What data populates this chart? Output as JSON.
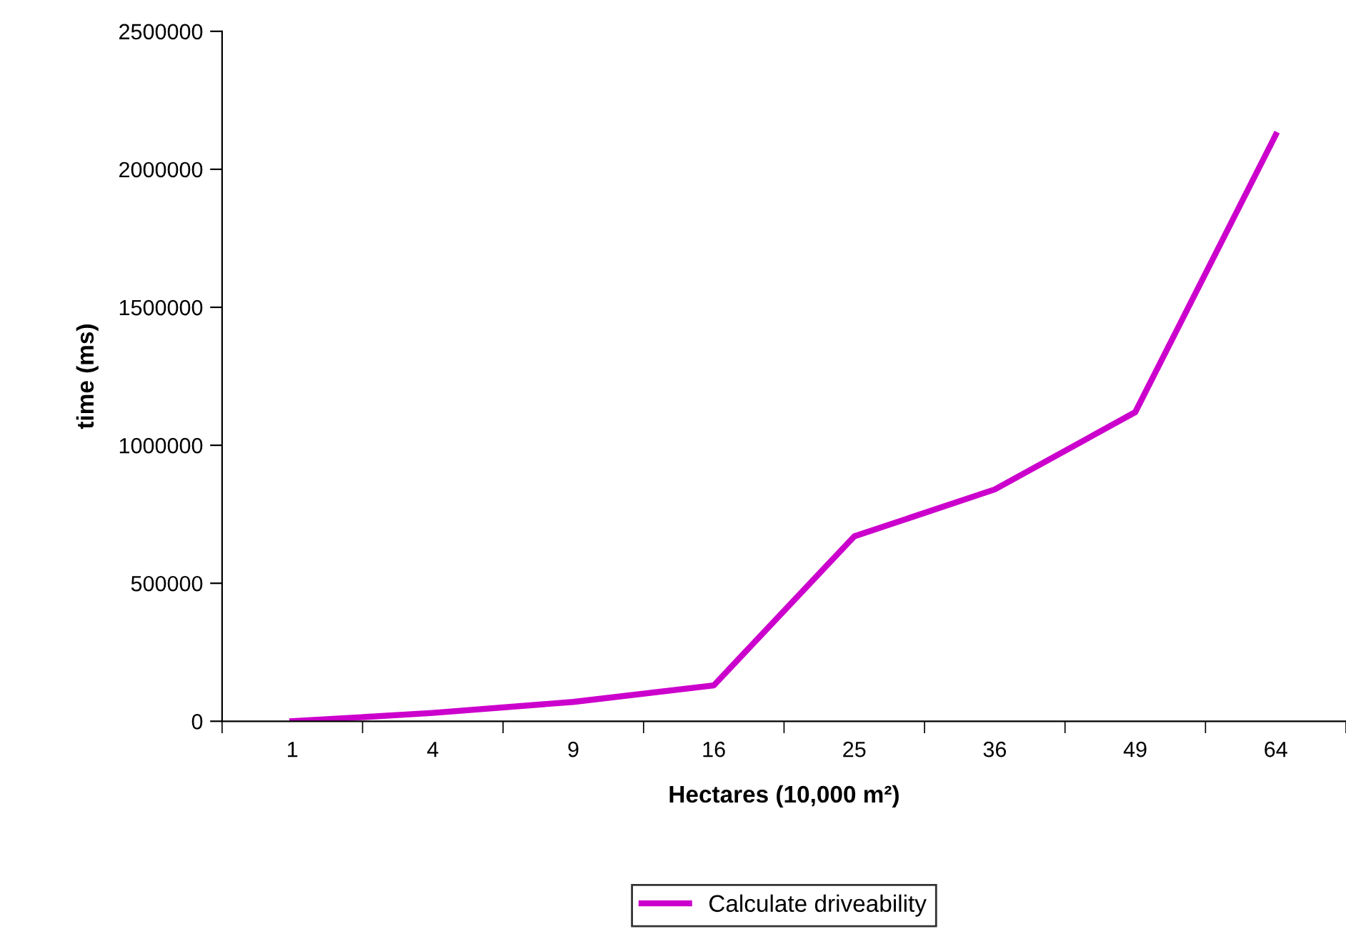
{
  "chart_data": {
    "type": "line",
    "xlabel": "Hectares (10,000 m²)",
    "ylabel": "time (ms)",
    "categories": [
      "1",
      "4",
      "9",
      "16",
      "25",
      "36",
      "49",
      "64"
    ],
    "series": [
      {
        "name": "Calculate driveability",
        "color": "#cc00cc",
        "values": [
          0,
          30000,
          70000,
          130000,
          670000,
          840000,
          1120000,
          2125000
        ]
      }
    ],
    "ylim": [
      0,
      2500000
    ],
    "yticks": [
      0,
      500000,
      1000000,
      1500000,
      2000000,
      2500000
    ],
    "grid": false,
    "legend": "bottom",
    "marker": "none",
    "line_style": "solid"
  }
}
